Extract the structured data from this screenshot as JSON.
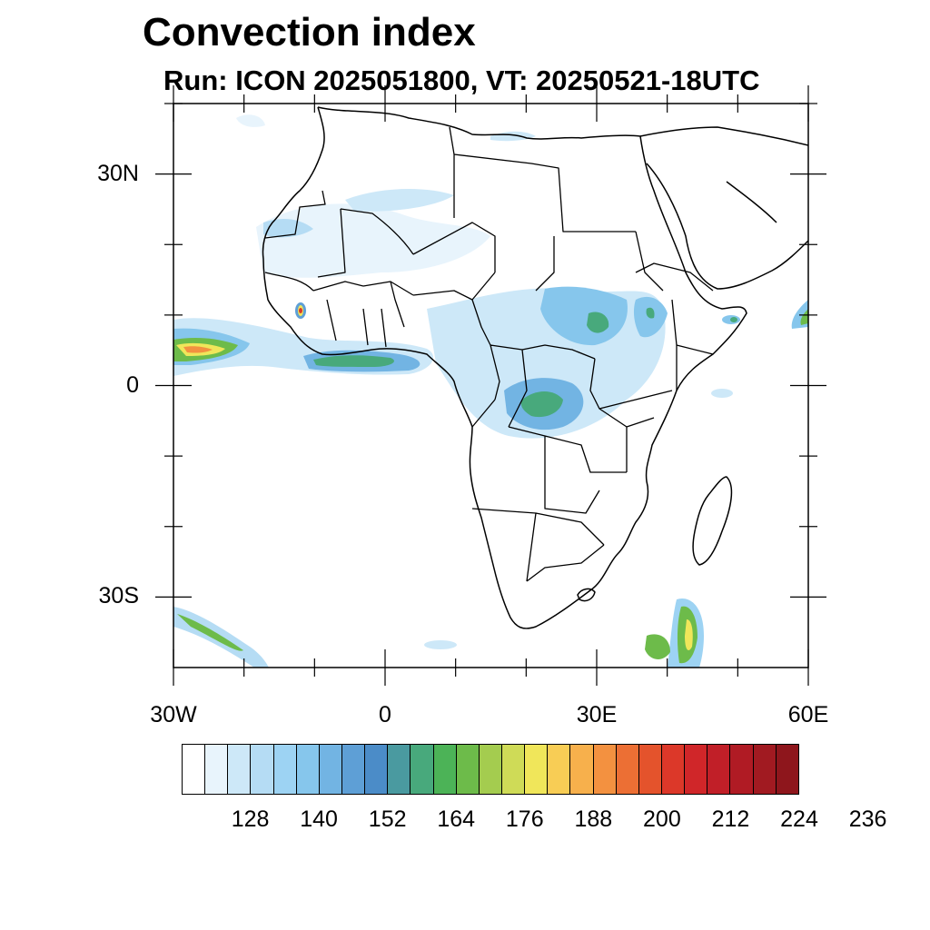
{
  "title": "Convection index",
  "subtitle": "Run: ICON 2025051800,  VT: 20250521-18UTC",
  "map": {
    "projection": "cylindrical equidistant",
    "lon_range": [
      -30,
      60
    ],
    "lat_range": [
      -40,
      40
    ],
    "lat_ticks": [
      {
        "value": 30,
        "label": "30N"
      },
      {
        "value": 0,
        "label": "0"
      },
      {
        "value": -30,
        "label": "30S"
      }
    ],
    "lon_ticks": [
      {
        "value": -30,
        "label": "30W"
      },
      {
        "value": 0,
        "label": "0"
      },
      {
        "value": 30,
        "label": "30E"
      },
      {
        "value": 60,
        "label": "60E"
      }
    ]
  },
  "colorbar": {
    "colors": [
      "#ffffff",
      "#e8f4fc",
      "#cde8f8",
      "#b5dcf4",
      "#9dd3f3",
      "#86c6ec",
      "#72b4e3",
      "#5e9fd6",
      "#4b8cc8",
      "#4a9aa0",
      "#48a97c",
      "#4cb357",
      "#6dbb4a",
      "#a4cc4f",
      "#cfdb57",
      "#f0e65a",
      "#f8cd55",
      "#f7b04c",
      "#f39140",
      "#ec6f34",
      "#e4532c",
      "#dc3829",
      "#d02629",
      "#c11f28",
      "#b01b24",
      "#a11a21",
      "#8e161c"
    ],
    "tick_labels": [
      "128",
      "140",
      "152",
      "164",
      "176",
      "188",
      "200",
      "212",
      "224",
      "236"
    ]
  }
}
